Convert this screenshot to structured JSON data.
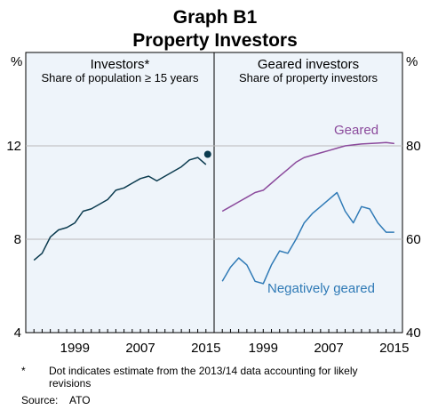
{
  "title": "Graph B1",
  "subtitle": "Property Investors",
  "y_unit_left": "%",
  "y_unit_right": "%",
  "chart_data": [
    {
      "type": "line",
      "title": "Investors*",
      "subtitle": "Share of population ≥ 15 years",
      "xlabel": "",
      "ylabel": "%",
      "ylim": [
        4,
        16
      ],
      "yticks": [
        4,
        8,
        12
      ],
      "xticks": [
        "1999",
        "2007",
        "2015"
      ],
      "series": [
        {
          "color": "#0b3b4f",
          "x": [
            1994,
            1995,
            1996,
            1997,
            1998,
            1999,
            2000,
            2001,
            2002,
            2003,
            2004,
            2005,
            2006,
            2007,
            2008,
            2009,
            2010,
            2011,
            2012,
            2013,
            2014,
            2015
          ],
          "values": [
            7.1,
            7.4,
            8.1,
            8.4,
            8.5,
            8.7,
            9.2,
            9.3,
            9.5,
            9.7,
            10.1,
            10.2,
            10.4,
            10.6,
            10.7,
            10.5,
            10.7,
            10.9,
            11.1,
            11.4,
            11.5,
            11.2
          ]
        }
      ],
      "estimate_point": {
        "x": 2015,
        "value": 11.6,
        "color": "#0b3b4f"
      }
    },
    {
      "type": "line",
      "title": "Geared investors",
      "subtitle": "Share of property investors",
      "xlabel": "",
      "ylabel": "%",
      "ylim": [
        40,
        100
      ],
      "yticks": [
        40,
        60,
        80
      ],
      "xticks": [
        "1999",
        "2007",
        "2015"
      ],
      "series": [
        {
          "name": "Geared",
          "color": "#8b4a9c",
          "x": [
            1994,
            1995,
            1996,
            1997,
            1998,
            1999,
            2000,
            2001,
            2002,
            2003,
            2004,
            2005,
            2006,
            2007,
            2008,
            2009,
            2010,
            2011,
            2012,
            2013,
            2014,
            2015
          ],
          "values": [
            66,
            67,
            68,
            69,
            70,
            70.5,
            72,
            73.5,
            75,
            76.5,
            77.5,
            78,
            78.5,
            79,
            79.5,
            80,
            80.2,
            80.4,
            80.5,
            80.6,
            80.7,
            80.5
          ]
        },
        {
          "name": "Negatively geared",
          "color": "#2f7ab6",
          "x": [
            1994,
            1995,
            1996,
            1997,
            1998,
            1999,
            2000,
            2001,
            2002,
            2003,
            2004,
            2005,
            2006,
            2007,
            2008,
            2009,
            2010,
            2011,
            2012,
            2013,
            2014,
            2015
          ],
          "values": [
            51,
            54,
            56,
            54.5,
            51,
            50.5,
            54.5,
            57.5,
            57,
            60,
            63.5,
            65.5,
            67,
            68.5,
            70,
            66,
            63.5,
            67,
            66.5,
            63.5,
            61.5,
            61.5
          ]
        }
      ]
    }
  ],
  "footnote_marker": "*",
  "footnote_text": "Dot indicates estimate from the 2013/14 data accounting for likely revisions",
  "source_label": "Source:",
  "source_text": "ATO"
}
